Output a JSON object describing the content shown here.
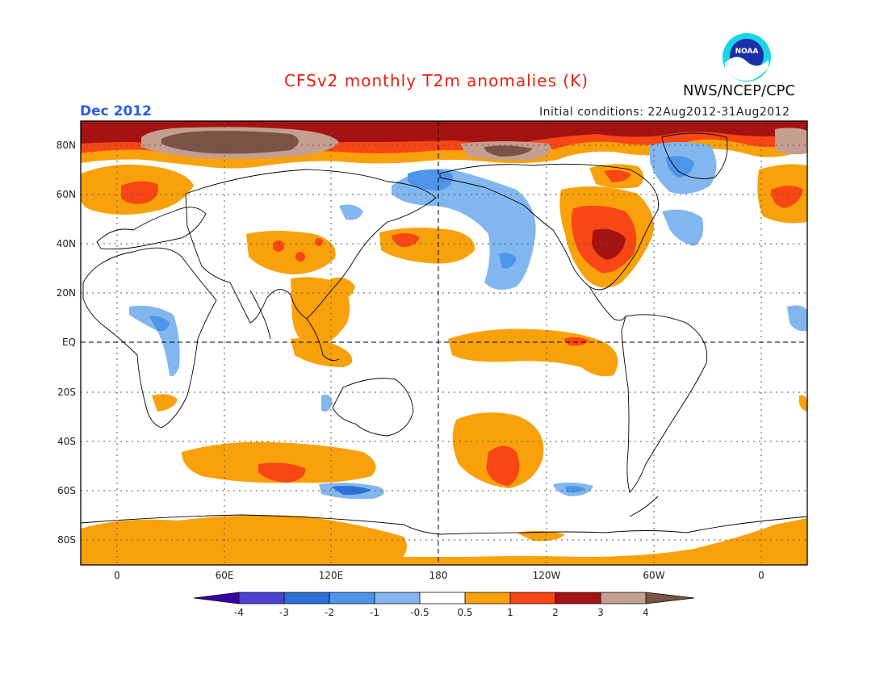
{
  "header": {
    "title": "CFSv2 monthly T2m anomalies (K)",
    "month": "Dec 2012",
    "initial_conditions": "Initial conditions: 22Aug2012-31Aug2012",
    "agency": "NWS/NCEP/CPC",
    "logo_text": "NOAA"
  },
  "axes": {
    "y_ticks": [
      "80N",
      "60N",
      "40N",
      "20N",
      "EQ",
      "20S",
      "40S",
      "60S",
      "80S"
    ],
    "x_ticks": [
      "0",
      "60E",
      "120E",
      "180",
      "120W",
      "60W",
      "0"
    ]
  },
  "colorbar": {
    "levels": [
      "-4",
      "-3",
      "-2",
      "-1",
      "-0.5",
      "0.5",
      "1",
      "2",
      "3",
      "4"
    ],
    "colors": {
      "lt_m4": "#3a00a8",
      "m4_m3": "#4f43d4",
      "m3_m2": "#2c70d8",
      "m2_m1": "#4d95ea",
      "m1_m05": "#82b6ee",
      "neutral": "#ffffff",
      "p05_p1": "#f9a10a",
      "p1_p2": "#f84614",
      "p2_p3": "#a51212",
      "p3_p4": "#c49e8f",
      "gt_p4": "#7a5545"
    }
  }
}
